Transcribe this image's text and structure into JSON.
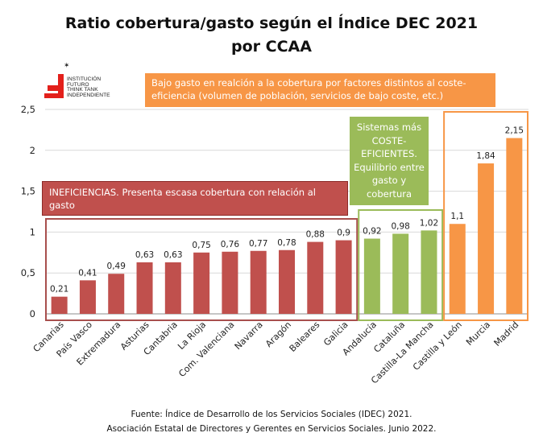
{
  "chart_data": {
    "type": "bar",
    "title": "Ratio cobertura/gasto según el Índice DEC 2021",
    "subtitle": "por CCAA",
    "xlabel": "",
    "ylabel": "",
    "ylim": [
      0,
      2.5
    ],
    "yticks": [
      "0",
      "0,5",
      "1",
      "1,5",
      "2",
      "2,5"
    ],
    "ytick_values": [
      0,
      0.5,
      1,
      1.5,
      2,
      2.5
    ],
    "grid": true,
    "categories": [
      "Canarias",
      "País Vasco",
      "Extremadura",
      "Asturias",
      "Cantabria",
      "La Rioja",
      "Com. Valenciana",
      "Navarra",
      "Aragón",
      "Baleares",
      "Galicia",
      "Andalucía",
      "Cataluña",
      "Castilla-La Mancha",
      "Castilla y León",
      "Murcia",
      "Madrid"
    ],
    "values": [
      0.21,
      0.41,
      0.49,
      0.63,
      0.63,
      0.75,
      0.76,
      0.77,
      0.78,
      0.88,
      0.9,
      0.92,
      0.98,
      1.02,
      1.1,
      1.84,
      2.15
    ],
    "value_labels": [
      "0,21",
      "0,41",
      "0,49",
      "0,63",
      "0,63",
      "0,75",
      "0,76",
      "0,77",
      "0,78",
      "0,88",
      "0,9",
      "0,92",
      "0,98",
      "1,02",
      "1,1",
      "1,84",
      "2,15"
    ],
    "groups": [
      {
        "name": "ineficiencias",
        "color": "#c0504d",
        "border": "#a84f4d",
        "from": 0,
        "to": 10
      },
      {
        "name": "coste-eficientes",
        "color": "#9bbb59",
        "border": "#9bbb59",
        "from": 11,
        "to": 13
      },
      {
        "name": "bajo-gasto",
        "color": "#f79646",
        "border": "#f79646",
        "from": 14,
        "to": 16
      }
    ],
    "annotations": [
      "Bajo gasto en realción a la cobertura por factores distintos al coste-eficiencia (volumen de población, servicios de bajo coste, etc.)",
      "INEFICIENCIAS. Presenta escasa cobertura con relación al gasto",
      "Sistemas más COSTE-EFICIENTES. Equilibrio entre gasto y cobertura"
    ]
  },
  "header": {
    "title_line1": "Ratio cobertura/gasto según el Índice DEC 2021",
    "title_line2": "por CCAA"
  },
  "logo": {
    "line1": "INSTITUCIÓN",
    "line2": "FUTURO",
    "line3": "THINK TANK",
    "line4": "INDEPENDIENTE",
    "brand_color": "#e3201b"
  },
  "notes": {
    "orange": "Bajo gasto en realción a la cobertura  por factores distintos al coste-eficiencia  (volumen de población, servicios de bajo coste, etc.)",
    "red": "INEFICIENCIAS. Presenta escasa cobertura con relación al gasto",
    "green": "Sistemas más COSTE-EFICIENTES. Equilibrio entre gasto y cobertura"
  },
  "footer": {
    "line1": "Fuente: Índice de Desarrollo de los Servicios Sociales (IDEC) 2021.",
    "line2": "Asociación Estatal de Directores y Gerentes en Servicios Sociales. Junio 2022."
  }
}
